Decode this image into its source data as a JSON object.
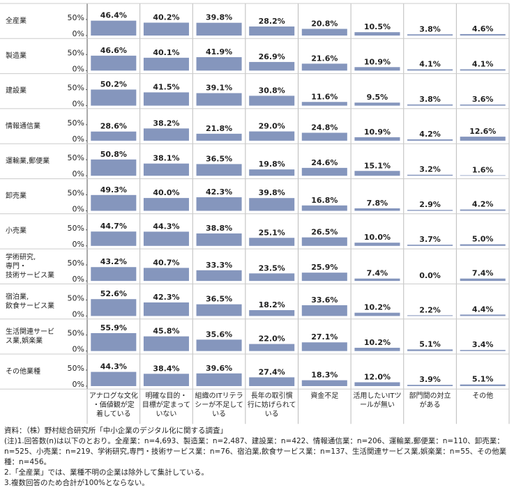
{
  "chart_data": {
    "type": "bar",
    "color": "#8596bd",
    "categories": [
      "アナログな文化\n・価値観が定\n着している",
      "明確な目的・\n目標が定まって\nいない",
      "組織のITリテラ\nシーが不足して\nいる",
      "長年の取引慣\n行に妨げられて\nいる",
      "資金不足",
      "活用したいITツ\nールが無い",
      "部門間の対立\nがある",
      "その他"
    ],
    "ylim": [
      0,
      100
    ],
    "yticks": [
      {
        "value": 0,
        "label": "0%"
      },
      {
        "value": 50,
        "label": "50%"
      }
    ],
    "series": [
      {
        "name": "全産業",
        "values": [
          46.4,
          40.2,
          39.8,
          28.2,
          20.8,
          10.5,
          3.8,
          4.6
        ],
        "value_labels": [
          "46.4%",
          "40.2%",
          "39.8%",
          "28.2%",
          "20.8%",
          "10.5%",
          "3.8%",
          "4.6%"
        ]
      },
      {
        "name": "製造業",
        "values": [
          46.6,
          40.1,
          41.9,
          26.9,
          21.6,
          10.9,
          4.1,
          4.1
        ],
        "value_labels": [
          "46.6%",
          "40.1%",
          "41.9%",
          "26.9%",
          "21.6%",
          "10.9%",
          "4.1%",
          "4.1%"
        ]
      },
      {
        "name": "建設業",
        "values": [
          50.2,
          41.5,
          39.1,
          30.8,
          11.6,
          9.5,
          3.8,
          3.6
        ],
        "value_labels": [
          "50.2%",
          "41.5%",
          "39.1%",
          "30.8%",
          "11.6%",
          "9.5%",
          "3.8%",
          "3.6%"
        ]
      },
      {
        "name": "情報通信業",
        "values": [
          28.6,
          38.2,
          21.8,
          29.0,
          24.8,
          10.9,
          4.2,
          12.6
        ],
        "value_labels": [
          "28.6%",
          "38.2%",
          "21.8%",
          "29.0%",
          "24.8%",
          "10.9%",
          "4.2%",
          "12.6%"
        ]
      },
      {
        "name": "運輸業,郵便業",
        "values": [
          50.8,
          38.1,
          36.5,
          19.8,
          24.6,
          15.1,
          3.2,
          1.6
        ],
        "value_labels": [
          "50.8%",
          "38.1%",
          "36.5%",
          "19.8%",
          "24.6%",
          "15.1%",
          "3.2%",
          "1.6%"
        ]
      },
      {
        "name": "卸売業",
        "values": [
          49.3,
          40.0,
          42.3,
          39.8,
          16.8,
          7.8,
          2.9,
          4.2
        ],
        "value_labels": [
          "49.3%",
          "40.0%",
          "42.3%",
          "39.8%",
          "16.8%",
          "7.8%",
          "2.9%",
          "4.2%"
        ]
      },
      {
        "name": "小売業",
        "values": [
          44.7,
          44.3,
          38.8,
          25.1,
          26.5,
          10.0,
          3.7,
          5.0
        ],
        "value_labels": [
          "44.7%",
          "44.3%",
          "38.8%",
          "25.1%",
          "26.5%",
          "10.0%",
          "3.7%",
          "5.0%"
        ]
      },
      {
        "name": "学術研究,\n専門・\n技術サービス業",
        "values": [
          43.2,
          40.7,
          33.3,
          23.5,
          25.9,
          7.4,
          0.0,
          7.4
        ],
        "value_labels": [
          "43.2%",
          "40.7%",
          "33.3%",
          "23.5%",
          "25.9%",
          "7.4%",
          "0.0%",
          "7.4%"
        ]
      },
      {
        "name": "宿泊業,\n飲食サービス業",
        "values": [
          52.6,
          42.3,
          36.5,
          18.2,
          33.6,
          10.2,
          2.2,
          4.4
        ],
        "value_labels": [
          "52.6%",
          "42.3%",
          "36.5%",
          "18.2%",
          "33.6%",
          "10.2%",
          "2.2%",
          "4.4%"
        ]
      },
      {
        "name": "生活関連サービ\nス業,娯楽業",
        "values": [
          55.9,
          45.8,
          35.6,
          22.0,
          27.1,
          10.2,
          5.1,
          3.4
        ],
        "value_labels": [
          "55.9%",
          "45.8%",
          "35.6%",
          "22.0%",
          "27.1%",
          "10.2%",
          "5.1%",
          "3.4%"
        ]
      },
      {
        "name": "その他業種",
        "values": [
          44.3,
          38.4,
          39.6,
          27.4,
          18.3,
          12.0,
          3.9,
          5.1
        ],
        "value_labels": [
          "44.3%",
          "38.4%",
          "39.6%",
          "27.4%",
          "18.3%",
          "12.0%",
          "3.9%",
          "5.1%"
        ]
      }
    ],
    "notes": [
      "資料：（株）野村総合研究所「中小企業のデジタル化に関する調査」",
      "(注)1.回答数(n)は以下のとおり。全産業：n=4,693、製造業：n=2,487、建設業：n=422、情報通信業：n=206、運輸業,郵便業：n=110、卸売業：n=525、小売業：n=219、学術研究,専門・技術サービス業：n=76、宿泊業,飲食サービス業：n=137、生活関連サービス業,娯楽業：n=55、その他業種：n=456。",
      "2.「全産業」では、業種不明の企業は除外して集計している。",
      "3.複数回答のため合計が100%とならない。"
    ]
  }
}
